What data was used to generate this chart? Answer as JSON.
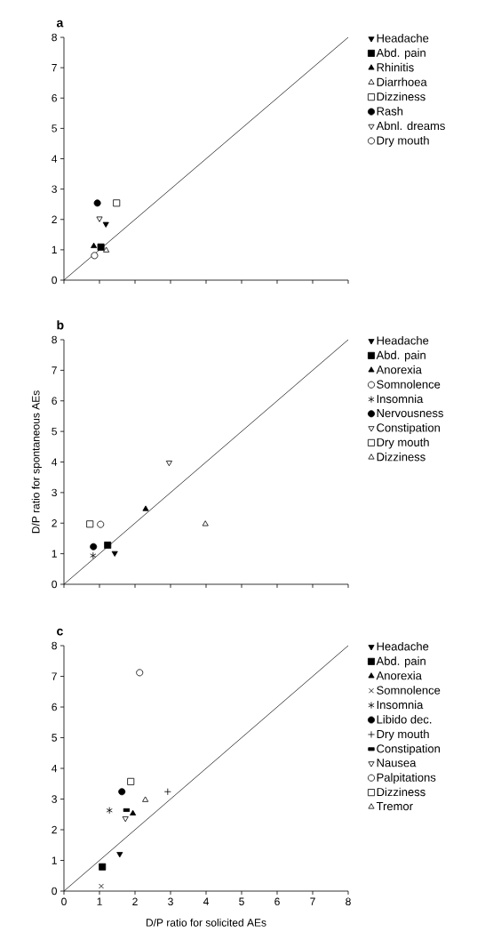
{
  "chart_data": [
    {
      "type": "scatter",
      "title": "a",
      "xlim": [
        0,
        8
      ],
      "ylim": [
        0,
        8
      ],
      "xticks": [
        0,
        1,
        2,
        3,
        4,
        5,
        6,
        7,
        8
      ],
      "yticks": [
        0,
        1,
        2,
        3,
        4,
        5,
        6,
        7,
        8
      ],
      "tick_labels": "y",
      "legend": "right",
      "series": [
        {
          "name": "Headache",
          "color": "#000000",
          "marker": "triangle-down",
          "x": [
            1.18
          ],
          "values": [
            1.85
          ]
        },
        {
          "name": "Abd. pain",
          "color": "#000000",
          "marker": "square",
          "x": [
            1.04
          ],
          "values": [
            1.09
          ]
        },
        {
          "name": "Rhinitis",
          "color": "#000000",
          "marker": "triangle",
          "x": [
            0.84
          ],
          "values": [
            1.12
          ]
        },
        {
          "name": "Diarrhoea",
          "color": "#000000",
          "marker": "triangle-open",
          "x": [
            1.19
          ],
          "values": [
            0.98
          ]
        },
        {
          "name": "Dizziness",
          "color": "#000000",
          "marker": "square-open",
          "x": [
            1.48
          ],
          "values": [
            2.54
          ]
        },
        {
          "name": "Rash",
          "color": "#000000",
          "marker": "circle",
          "x": [
            0.94
          ],
          "values": [
            2.54
          ]
        },
        {
          "name": "Abnl. dreams",
          "color": "#000000",
          "marker": "triangle-down-open",
          "x": [
            1.0
          ],
          "values": [
            2.03
          ]
        },
        {
          "name": "Dry mouth",
          "color": "#000000",
          "marker": "circle-open",
          "x": [
            0.86
          ],
          "values": [
            0.81
          ]
        },
        {
          "type": "line",
          "color": "#000000",
          "marker": "none",
          "x": [
            0,
            8
          ],
          "values": [
            0,
            8
          ]
        }
      ]
    },
    {
      "type": "scatter",
      "title": "b",
      "ylabel": "D/P ratio for spontaneous AEs",
      "xlim": [
        0,
        8
      ],
      "ylim": [
        0,
        8
      ],
      "xticks": [
        0,
        1,
        2,
        3,
        4,
        5,
        6,
        7,
        8
      ],
      "yticks": [
        0,
        1,
        2,
        3,
        4,
        5,
        6,
        7,
        8
      ],
      "tick_labels": "y",
      "legend": "right",
      "series": [
        {
          "name": "Headache",
          "color": "#000000",
          "marker": "triangle-down",
          "x": [
            1.43
          ],
          "values": [
            1.02
          ]
        },
        {
          "name": "Abd. pain",
          "color": "#000000",
          "marker": "square",
          "x": [
            1.23
          ],
          "values": [
            1.28
          ]
        },
        {
          "name": "Anorexia",
          "color": "#000000",
          "marker": "triangle",
          "x": [
            2.3
          ],
          "values": [
            2.46
          ]
        },
        {
          "name": "Somnolence",
          "color": "#000000",
          "marker": "circle-open",
          "x": [
            1.03
          ],
          "values": [
            1.96
          ]
        },
        {
          "name": "Insomnia",
          "color": "#000000",
          "marker": "cross",
          "x": [
            0.82
          ],
          "values": [
            0.94
          ]
        },
        {
          "name": "Nervousness",
          "color": "#000000",
          "marker": "circle",
          "x": [
            0.83
          ],
          "values": [
            1.23
          ]
        },
        {
          "name": "Constipation",
          "color": "#000000",
          "marker": "triangle-down-open",
          "x": [
            2.96
          ],
          "values": [
            3.98
          ]
        },
        {
          "name": "Dry mouth",
          "color": "#000000",
          "marker": "square-open",
          "x": [
            0.73
          ],
          "values": [
            1.97
          ]
        },
        {
          "name": "Dizziness",
          "color": "#000000",
          "marker": "triangle-open",
          "x": [
            3.98
          ],
          "values": [
            1.97
          ]
        },
        {
          "type": "line",
          "color": "#000000",
          "marker": "none",
          "x": [
            0,
            8
          ],
          "values": [
            0,
            8
          ]
        }
      ]
    },
    {
      "type": "scatter",
      "title": "c",
      "xlabel": "D/P ratio for solicited AEs",
      "xlim": [
        0,
        8
      ],
      "ylim": [
        0,
        8
      ],
      "xticks": [
        0,
        1,
        2,
        3,
        4,
        5,
        6,
        7,
        8
      ],
      "yticks": [
        0,
        1,
        2,
        3,
        4,
        5,
        6,
        7,
        8
      ],
      "legend": "right",
      "series": [
        {
          "name": "Headache",
          "color": "#000000",
          "marker": "triangle-down",
          "x": [
            1.57
          ],
          "values": [
            1.21
          ]
        },
        {
          "name": "Abd. pain",
          "color": "#000000",
          "marker": "square",
          "x": [
            1.08
          ],
          "values": [
            0.79
          ]
        },
        {
          "name": "Anorexia",
          "color": "#000000",
          "marker": "triangle",
          "x": [
            1.94
          ],
          "values": [
            2.53
          ]
        },
        {
          "name": "Somnolence",
          "color": "#000000",
          "marker": "x",
          "x": [
            1.05
          ],
          "values": [
            0.16
          ]
        },
        {
          "name": "Insomnia",
          "color": "#000000",
          "marker": "cross",
          "x": [
            1.28
          ],
          "values": [
            2.63
          ]
        },
        {
          "name": "Libido dec.",
          "color": "#000000",
          "marker": "circle",
          "x": [
            1.63
          ],
          "values": [
            3.24
          ]
        },
        {
          "name": "Dry mouth",
          "color": "#000000",
          "marker": "plus",
          "x": [
            2.92
          ],
          "values": [
            3.24
          ]
        },
        {
          "name": "Constipation",
          "color": "#000000",
          "marker": "square-flat",
          "x": [
            1.76
          ],
          "values": [
            2.64
          ]
        },
        {
          "name": "Nausea",
          "color": "#000000",
          "marker": "triangle-down-open",
          "x": [
            1.73
          ],
          "values": [
            2.37
          ]
        },
        {
          "name": "Palpitations",
          "color": "#000000",
          "marker": "circle-open",
          "x": [
            2.13
          ],
          "values": [
            7.12
          ]
        },
        {
          "name": "Dizziness",
          "color": "#000000",
          "marker": "square-open",
          "x": [
            1.88
          ],
          "values": [
            3.57
          ]
        },
        {
          "name": "Tremor",
          "color": "#000000",
          "marker": "triangle-open",
          "x": [
            2.29
          ],
          "values": [
            2.97
          ]
        },
        {
          "type": "line",
          "color": "#000000",
          "marker": "none",
          "x": [
            0,
            8
          ],
          "values": [
            0,
            8
          ]
        }
      ]
    }
  ]
}
